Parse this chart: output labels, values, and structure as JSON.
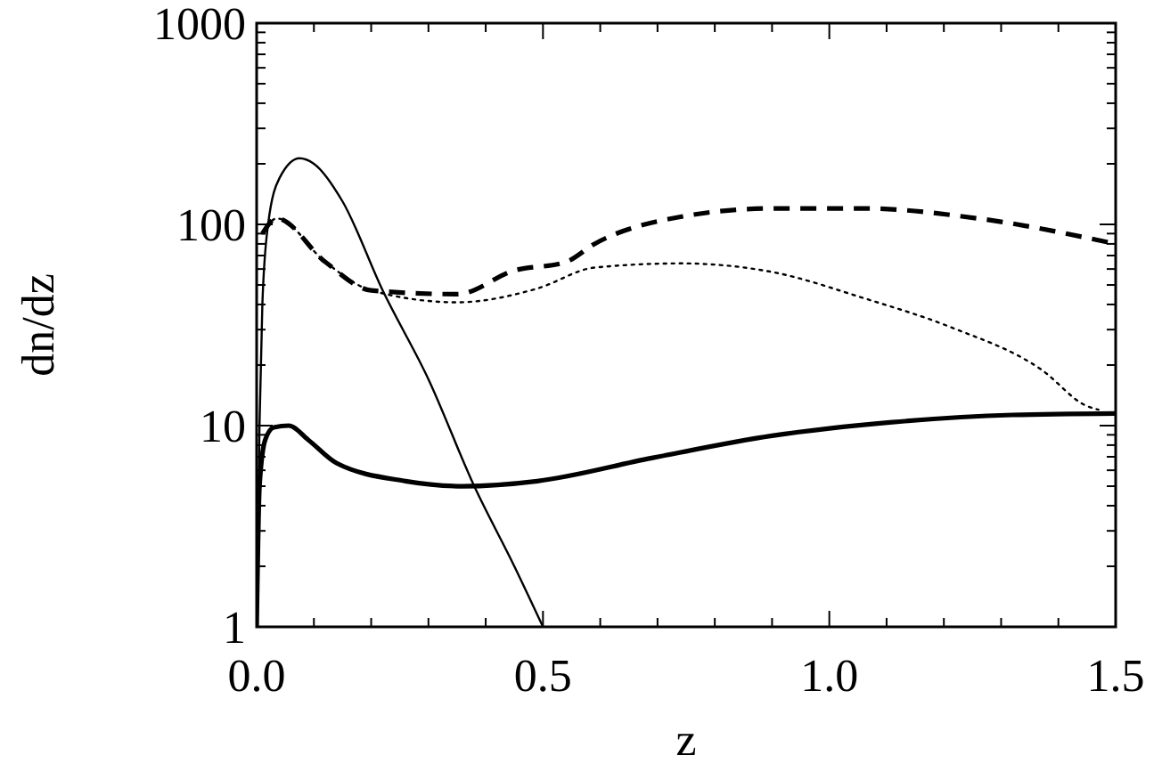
{
  "chart_data": {
    "type": "line",
    "xlabel": "z",
    "ylabel": "dn/dz",
    "log": "y",
    "grid": false,
    "marker": "none",
    "xlim": [
      0,
      1.5
    ],
    "ylim": [
      1,
      1000
    ],
    "xticks": [
      {
        "value": 0,
        "label": "0.0"
      },
      {
        "value": 0.1,
        "label": null
      },
      {
        "value": 0.2,
        "label": null
      },
      {
        "value": 0.3,
        "label": null
      },
      {
        "value": 0.4,
        "label": null
      },
      {
        "value": 0.5,
        "label": "0.5"
      },
      {
        "value": 0.6,
        "label": null
      },
      {
        "value": 0.7,
        "label": null
      },
      {
        "value": 0.8,
        "label": null
      },
      {
        "value": 0.9,
        "label": null
      },
      {
        "value": 1.0,
        "label": "1.0"
      },
      {
        "value": 1.1,
        "label": null
      },
      {
        "value": 1.2,
        "label": null
      },
      {
        "value": 1.3,
        "label": null
      },
      {
        "value": 1.4,
        "label": null
      },
      {
        "value": 1.5,
        "label": "1.5"
      }
    ],
    "yticks": [
      1,
      {
        "value": 2,
        "label": null
      },
      {
        "value": 3,
        "label": null
      },
      {
        "value": 4,
        "label": null
      },
      {
        "value": 5,
        "label": null
      },
      {
        "value": 6,
        "label": null
      },
      {
        "value": 7,
        "label": null
      },
      {
        "value": 8,
        "label": null
      },
      {
        "value": 9,
        "label": null
      },
      10,
      {
        "value": 20,
        "label": null
      },
      {
        "value": 30,
        "label": null
      },
      {
        "value": 40,
        "label": null
      },
      {
        "value": 50,
        "label": null
      },
      {
        "value": 60,
        "label": null
      },
      {
        "value": 70,
        "label": null
      },
      {
        "value": 80,
        "label": null
      },
      {
        "value": 90,
        "label": null
      },
      100,
      {
        "value": 200,
        "label": null
      },
      {
        "value": 300,
        "label": null
      },
      {
        "value": 400,
        "label": null
      },
      {
        "value": 500,
        "label": null
      },
      {
        "value": 600,
        "label": null
      },
      {
        "value": 700,
        "label": null
      },
      {
        "value": 800,
        "label": null
      },
      {
        "value": 900,
        "label": null
      },
      1000
    ],
    "series": [
      {
        "color": "#000000",
        "line_style": "solid",
        "x": [
          0,
          0.005,
          0.01,
          0.02,
          0.04,
          0.075,
          0.1,
          0.15,
          0.22,
          0.3,
          0.38,
          0.45,
          0.5
        ],
        "values": [
          1,
          10,
          40,
          100,
          170,
          213,
          200,
          130,
          47,
          17,
          5,
          2,
          1
        ]
      },
      {
        "color": "#000000",
        "line_style": "solid",
        "x": [
          0,
          0.005,
          0.015,
          0.03,
          0.056,
          0.09,
          0.14,
          0.26,
          0.36,
          0.49,
          0.69,
          0.9,
          1.11,
          1.32,
          1.5
        ],
        "values": [
          1,
          5,
          8.5,
          9.8,
          10,
          8.5,
          6.5,
          5.3,
          5,
          5.3,
          6.9,
          8.9,
          10.4,
          11.3,
          11.5
        ]
      },
      {
        "color": "#000000",
        "line_style": "dashed",
        "x": [
          0.01,
          0.035,
          0.12,
          0.2,
          0.35,
          0.45,
          0.54,
          0.59,
          0.74,
          0.9,
          1.06,
          1.26,
          1.5
        ],
        "values": [
          90,
          107,
          65,
          47,
          45,
          59,
          65,
          80,
          109,
          120,
          120,
          107,
          80
        ]
      },
      {
        "color": "#000000",
        "line_style": "dotted",
        "x": [
          0.01,
          0.035,
          0.12,
          0.2,
          0.35,
          0.49,
          0.59,
          0.74,
          0.9,
          1.06,
          1.21,
          1.37,
          1.45,
          1.47
        ],
        "values": [
          90,
          107,
          65,
          47,
          41,
          48,
          61,
          64,
          58,
          43,
          31,
          19,
          12.5,
          12
        ]
      }
    ]
  }
}
